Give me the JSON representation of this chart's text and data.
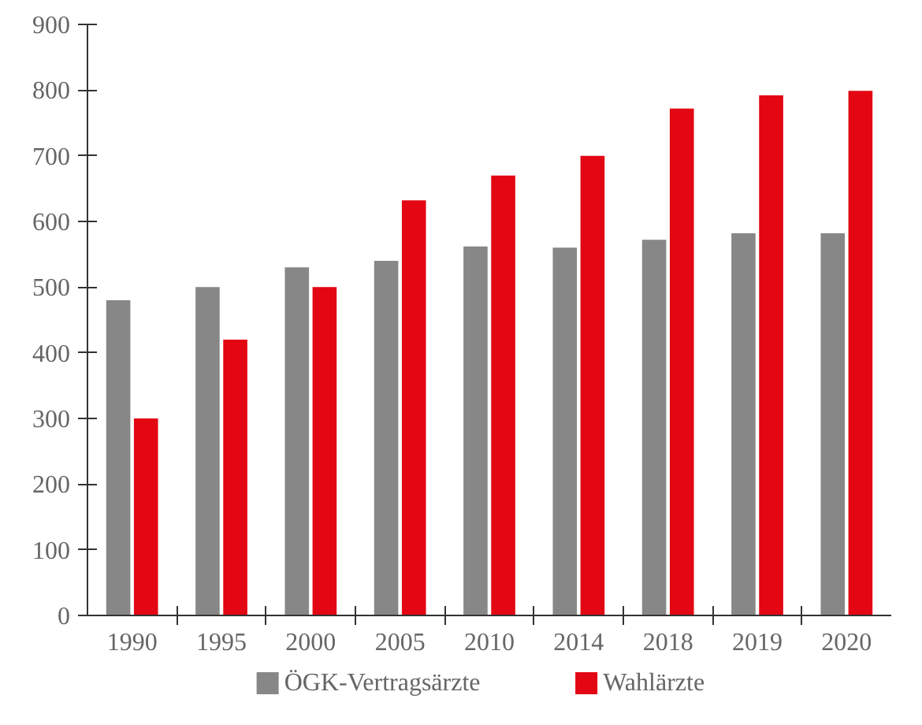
{
  "chart_data": {
    "type": "bar",
    "categories": [
      "1990",
      "1995",
      "2000",
      "2005",
      "2010",
      "2014",
      "2018",
      "2019",
      "2020"
    ],
    "series": [
      {
        "name": "ÖGK-Vertragsärzte",
        "color": "#878787",
        "values": [
          480,
          500,
          530,
          540,
          562,
          560,
          572,
          582,
          582
        ]
      },
      {
        "name": "Wahlärzte",
        "color": "#e30613",
        "values": [
          300,
          420,
          500,
          632,
          670,
          700,
          772,
          792,
          799
        ]
      }
    ],
    "ylim": [
      0,
      900
    ],
    "yticks": [
      0,
      100,
      200,
      300,
      400,
      500,
      600,
      700,
      800,
      900
    ],
    "grid": false,
    "legend": "bottom"
  }
}
